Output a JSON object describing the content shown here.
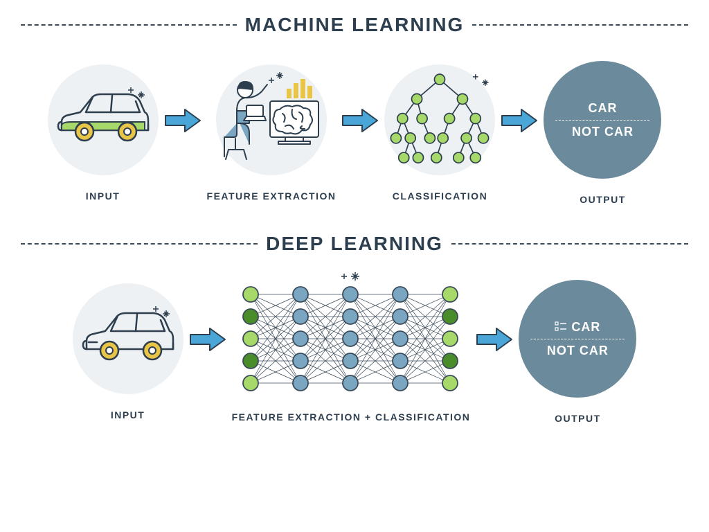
{
  "colors": {
    "title": "#2d3e4e",
    "dash": "#3a4a58",
    "icon_bg": "#eef1f3",
    "arrow_fill": "#4aa6d6",
    "arrow_stroke": "#2d3e4e",
    "output_bg": "#6b8a9b",
    "label": "#2d3e4e",
    "nn_green_light": "#a6d96a",
    "nn_green_dark": "#4a8c2a",
    "nn_blue": "#7aa6c2",
    "nn_line": "#3a4a58",
    "car_outline": "#2d3e4e",
    "car_accent": "#a6d96a",
    "car_wheel": "#e8c547"
  },
  "typography": {
    "title_fontsize": 28,
    "label_fontsize": 14,
    "output_fontsize": 18
  },
  "layout": {
    "icon_diameter": 160,
    "output_diameter": 170,
    "arrow_width": 54,
    "arrow_height": 36,
    "nn_wide_width": 330,
    "nn_wide_height": 160
  },
  "ml": {
    "title": "MACHINE LEARNING",
    "steps": [
      {
        "label": "INPUT",
        "icon": "car"
      },
      {
        "label": "FEATURE EXTRACTION",
        "icon": "feature"
      },
      {
        "label": "CLASSIFICATION",
        "icon": "tree"
      }
    ],
    "output": {
      "top": "CAR",
      "bottom": "NOT CAR",
      "label": "OUTPUT"
    }
  },
  "dl": {
    "title": "DEEP LEARNING",
    "steps": [
      {
        "label": "INPUT",
        "icon": "car"
      },
      {
        "label": "FEATURE EXTRACTION + CLASSIFICATION",
        "icon": "nn"
      }
    ],
    "output": {
      "top": "CAR",
      "bottom": "NOT CAR",
      "label": "OUTPUT"
    }
  },
  "nn": {
    "layers": [
      {
        "count": 5,
        "colors": [
          "#a6d96a",
          "#4a8c2a",
          "#a6d96a",
          "#4a8c2a",
          "#a6d96a"
        ]
      },
      {
        "count": 5,
        "colors": [
          "#7aa6c2",
          "#7aa6c2",
          "#7aa6c2",
          "#7aa6c2",
          "#7aa6c2"
        ]
      },
      {
        "count": 5,
        "colors": [
          "#7aa6c2",
          "#7aa6c2",
          "#7aa6c2",
          "#7aa6c2",
          "#7aa6c2"
        ]
      },
      {
        "count": 5,
        "colors": [
          "#7aa6c2",
          "#7aa6c2",
          "#7aa6c2",
          "#7aa6c2",
          "#7aa6c2"
        ]
      },
      {
        "count": 5,
        "colors": [
          "#a6d96a",
          "#4a8c2a",
          "#a6d96a",
          "#4a8c2a",
          "#a6d96a"
        ]
      }
    ],
    "node_radius": 11,
    "col_spacing": 72,
    "row_spacing": 32,
    "connect": "adjacent-full"
  },
  "tree": {
    "node_radius": 8,
    "node_fill": "#a6d96a",
    "node_stroke": "#2d3e4e",
    "edge_color": "#2d3e4e"
  }
}
